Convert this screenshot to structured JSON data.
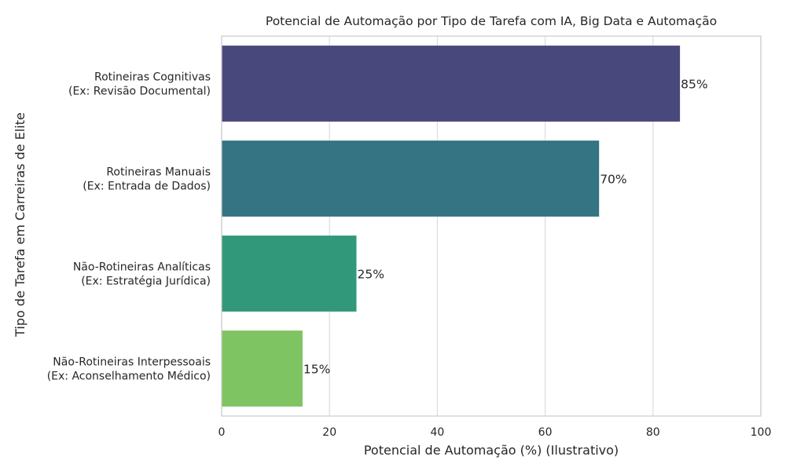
{
  "chart_data": {
    "type": "bar",
    "orientation": "horizontal",
    "title": "Potencial de Automação por Tipo de Tarefa com IA, Big Data e Automação",
    "xlabel": "Potencial de Automação (%) (Ilustrativo)",
    "ylabel": "Tipo de Tarefa em Carreiras de Elite",
    "xlim": [
      0,
      100
    ],
    "xticks": [
      0,
      20,
      40,
      60,
      80,
      100
    ],
    "grid": true,
    "categories": [
      [
        "Rotineiras Cognitivas",
        "(Ex: Revisão Documental)"
      ],
      [
        "Rotineiras Manuais",
        "(Ex: Entrada de Dados)"
      ],
      [
        "Não-Rotineiras Analíticas",
        "(Ex: Estratégia Jurídica)"
      ],
      [
        "Não-Rotineiras Interpessoais",
        "(Ex: Aconselhamento Médico)"
      ]
    ],
    "values": [
      85,
      70,
      25,
      15
    ],
    "value_labels": [
      "85%",
      "70%",
      "25%",
      "15%"
    ],
    "colors": [
      "#48487d",
      "#357482",
      "#32987a",
      "#7fc462"
    ]
  }
}
